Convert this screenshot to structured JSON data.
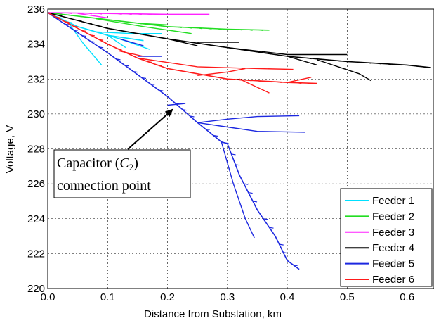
{
  "chart_data": {
    "type": "line",
    "xlabel": "Distance from Substation, km",
    "ylabel": "Voltage, V",
    "xlim": [
      0,
      0.645
    ],
    "ylim": [
      220,
      236
    ],
    "xticks": [
      0,
      0.1,
      0.2,
      0.3,
      0.4,
      0.5,
      0.6
    ],
    "xtick_labels": [
      "0.0",
      "0.1",
      "0.2",
      "0.3",
      "0.4",
      "0.5",
      "0.6"
    ],
    "yticks": [
      220,
      222,
      224,
      226,
      228,
      230,
      232,
      234,
      236
    ],
    "ytick_labels": [
      "220",
      "222",
      "224",
      "226",
      "228",
      "230",
      "232",
      "234",
      "236"
    ],
    "grid": true,
    "legend_position": "bottom-right",
    "annotation": {
      "line1": "Capacitor (",
      "symbol": "C",
      "subscript": "2",
      "line1_end": ")",
      "line2": "connection point",
      "arrow_target": [
        0.21,
        230.3
      ]
    },
    "series": [
      {
        "name": "Feeder 1",
        "color": "#00e0ff",
        "trunk": [
          [
            0,
            235.8
          ],
          [
            0.05,
            235.0
          ],
          [
            0.1,
            234.5
          ],
          [
            0.16,
            234.2
          ]
        ],
        "branches": [
          [
            [
              0.035,
              235.2
            ],
            [
              0.06,
              234.0
            ],
            [
              0.09,
              232.8
            ]
          ],
          [
            [
              0.06,
              234.9
            ],
            [
              0.12,
              234.3
            ],
            [
              0.17,
              233.7
            ]
          ],
          [
            [
              0.08,
              234.7
            ],
            [
              0.14,
              234.6
            ],
            [
              0.19,
              234.6
            ]
          ],
          [
            [
              0.1,
              234.5
            ],
            [
              0.13,
              233.8
            ]
          ]
        ]
      },
      {
        "name": "Feeder 2",
        "color": "#22dd22",
        "trunk": [
          [
            0,
            235.8
          ],
          [
            0.1,
            235.4
          ],
          [
            0.2,
            235.0
          ],
          [
            0.3,
            234.85
          ],
          [
            0.37,
            234.8
          ]
        ],
        "branches": [
          [
            [
              0.08,
              235.45
            ],
            [
              0.16,
              235.0
            ],
            [
              0.24,
              234.6
            ]
          ],
          [
            [
              0.15,
              235.2
            ],
            [
              0.2,
              235.1
            ]
          ]
        ]
      },
      {
        "name": "Feeder 3",
        "color": "#ff22ff",
        "trunk": [
          [
            0,
            235.8
          ],
          [
            0.1,
            235.75
          ],
          [
            0.2,
            235.7
          ],
          [
            0.27,
            235.7
          ]
        ],
        "branches": [
          [
            [
              0.05,
              235.75
            ],
            [
              0.1,
              235.5
            ]
          ]
        ]
      },
      {
        "name": "Feeder 4",
        "color": "#000000",
        "trunk": [
          [
            0,
            235.8
          ],
          [
            0.1,
            234.9
          ],
          [
            0.2,
            234.3
          ],
          [
            0.3,
            233.8
          ],
          [
            0.4,
            233.3
          ],
          [
            0.5,
            233.0
          ],
          [
            0.6,
            232.8
          ],
          [
            0.64,
            232.65
          ]
        ],
        "branches": [
          [
            [
              0.3,
              233.8
            ],
            [
              0.4,
              233.4
            ],
            [
              0.5,
              233.4
            ]
          ],
          [
            [
              0.45,
              233.1
            ],
            [
              0.52,
              232.3
            ],
            [
              0.54,
              231.9
            ]
          ],
          [
            [
              0.25,
              234.1
            ],
            [
              0.32,
              234.1
            ]
          ],
          [
            [
              0.2,
              234.3
            ],
            [
              0.25,
              233.9
            ]
          ],
          [
            [
              0.4,
              233.3
            ],
            [
              0.45,
              232.8
            ]
          ]
        ]
      },
      {
        "name": "Feeder 5",
        "color": "#1c28e0",
        "trunk": [
          [
            0,
            235.8
          ],
          [
            0.1,
            233.5
          ],
          [
            0.2,
            231.0
          ],
          [
            0.25,
            229.5
          ],
          [
            0.29,
            228.4
          ],
          [
            0.3,
            228.3
          ],
          [
            0.32,
            226.5
          ],
          [
            0.35,
            224.5
          ],
          [
            0.38,
            223.0
          ],
          [
            0.4,
            221.6
          ],
          [
            0.42,
            221.1
          ]
        ],
        "branches": [
          [
            [
              0.29,
              228.4
            ],
            [
              0.31,
              226.0
            ],
            [
              0.33,
              224.0
            ],
            [
              0.345,
              222.9
            ]
          ],
          [
            [
              0.25,
              229.5
            ],
            [
              0.3,
              229.7
            ],
            [
              0.35,
              229.85
            ],
            [
              0.42,
              229.9
            ]
          ],
          [
            [
              0.25,
              229.5
            ],
            [
              0.3,
              229.25
            ],
            [
              0.35,
              229.0
            ],
            [
              0.43,
              228.95
            ]
          ],
          [
            [
              0.2,
              230.5
            ],
            [
              0.23,
              230.6
            ]
          ],
          [
            [
              0.12,
              234.3
            ],
            [
              0.16,
              233.9
            ]
          ],
          [
            [
              0.15,
              233.3
            ],
            [
              0.19,
              233.3
            ]
          ]
        ]
      },
      {
        "name": "Feeder 6",
        "color": "#ff1a1a",
        "trunk": [
          [
            0,
            235.8
          ],
          [
            0.1,
            234.0
          ],
          [
            0.15,
            233.2
          ],
          [
            0.2,
            232.6
          ],
          [
            0.3,
            232.0
          ],
          [
            0.4,
            231.8
          ],
          [
            0.45,
            231.75
          ]
        ],
        "branches": [
          [
            [
              0.15,
              233.2
            ],
            [
              0.25,
              232.7
            ],
            [
              0.35,
              232.6
            ],
            [
              0.41,
              232.55
            ]
          ],
          [
            [
              0.25,
              232.2
            ],
            [
              0.3,
              232.4
            ],
            [
              0.33,
              232.6
            ]
          ],
          [
            [
              0.32,
              232.0
            ],
            [
              0.37,
              231.2
            ]
          ],
          [
            [
              0.4,
              231.8
            ],
            [
              0.44,
              232.1
            ]
          ],
          [
            [
              0.12,
              233.6
            ],
            [
              0.16,
              233.3
            ]
          ]
        ]
      }
    ]
  }
}
